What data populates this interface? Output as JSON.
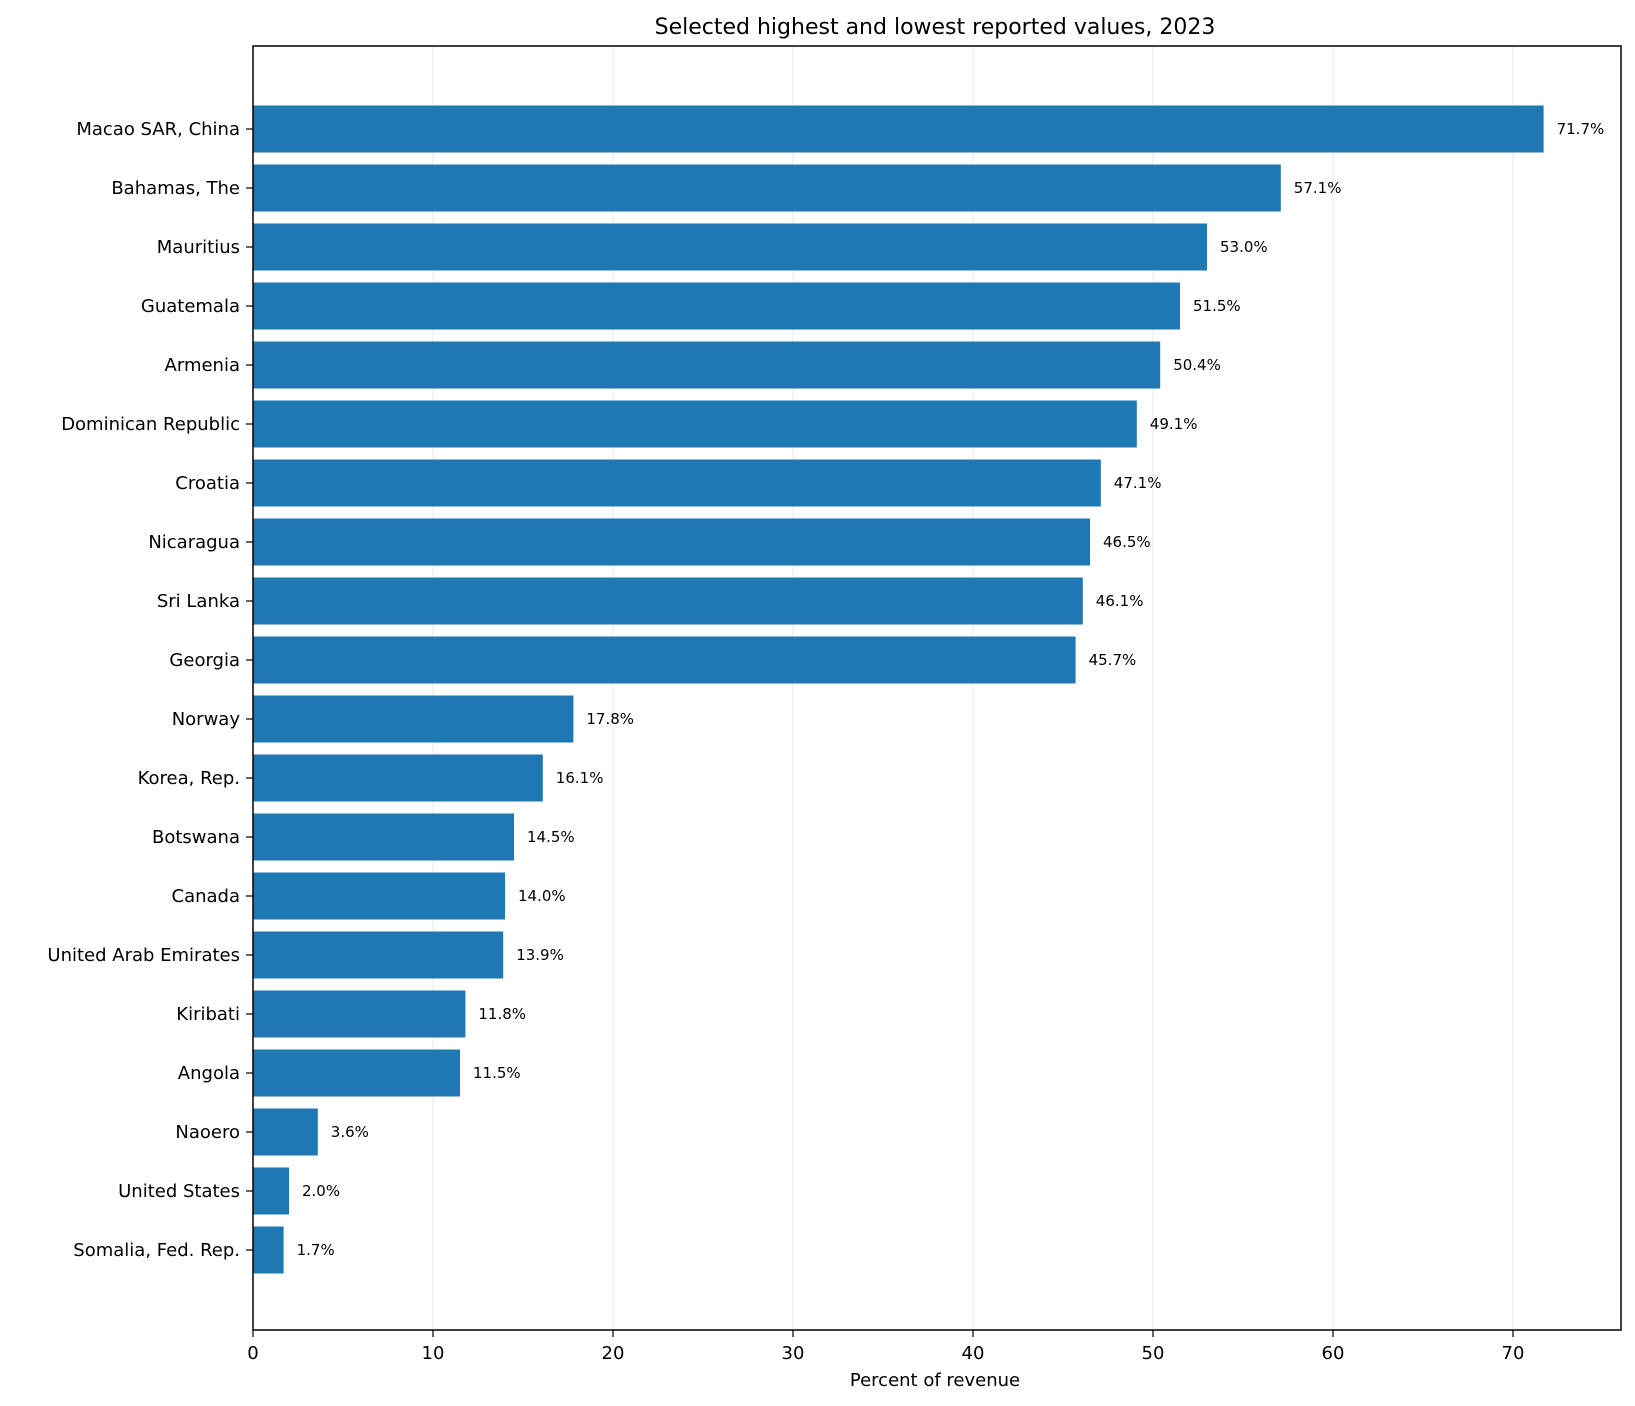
{
  "chart_data": {
    "type": "bar",
    "orientation": "horizontal",
    "title": "Selected highest and lowest reported values, 2023",
    "xlabel": "Percent of revenue",
    "ylabel": "",
    "xlim": [
      0,
      76
    ],
    "xticks": [
      0,
      10,
      20,
      30,
      40,
      50,
      60,
      70
    ],
    "grid": "x",
    "bar_color": "#1f77b4",
    "categories": [
      "Macao SAR, China",
      "Bahamas, The",
      "Mauritius",
      "Guatemala",
      "Armenia",
      "Dominican Republic",
      "Croatia",
      "Nicaragua",
      "Sri Lanka",
      "Georgia",
      "Norway",
      "Korea, Rep.",
      "Botswana",
      "Canada",
      "United Arab Emirates",
      "Kiribati",
      "Angola",
      "Naoero",
      "United States",
      "Somalia, Fed. Rep."
    ],
    "values": [
      71.7,
      57.1,
      53.0,
      51.5,
      50.4,
      49.1,
      47.1,
      46.5,
      46.1,
      45.7,
      17.8,
      16.1,
      14.5,
      14.0,
      13.9,
      11.8,
      11.5,
      3.6,
      2.0,
      1.7
    ],
    "data_labels": [
      "71.7%",
      "57.1%",
      "53.0%",
      "51.5%",
      "50.4%",
      "49.1%",
      "47.1%",
      "46.5%",
      "46.1%",
      "45.7%",
      "17.8%",
      "16.1%",
      "14.5%",
      "14.0%",
      "13.9%",
      "11.8%",
      "11.5%",
      "3.6%",
      "2.0%",
      "1.7%"
    ]
  }
}
